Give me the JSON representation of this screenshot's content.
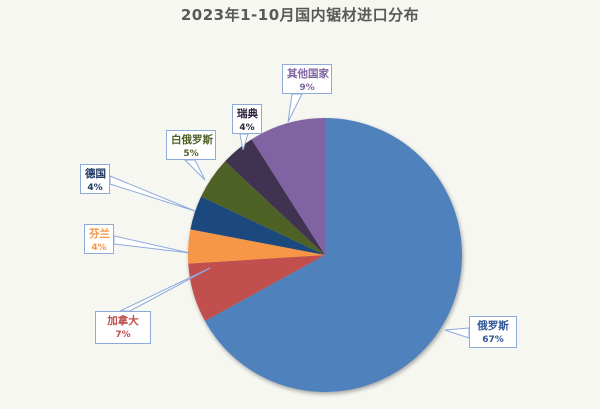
{
  "chart_data": {
    "type": "pie",
    "title": "2023年1-10月国内锯材进口分布",
    "categories": [
      "俄罗斯",
      "加拿大",
      "芬兰",
      "德国",
      "白俄罗斯",
      "瑞典",
      "其他国家"
    ],
    "values": [
      67,
      7,
      4,
      4,
      5,
      4,
      9
    ],
    "unit": "%",
    "labels": [
      "67%",
      "7%",
      "4%",
      "4%",
      "5%",
      "4%",
      "9%"
    ],
    "colors": [
      "#4f81bd",
      "#c0504d",
      "#f79646",
      "#1f497d",
      "#4f6228",
      "#403151",
      "#8064a2"
    ],
    "label_colors": [
      "#2f5597",
      "#c0504d",
      "#f79646",
      "#1f3864",
      "#4f6228",
      "#2e2440",
      "#8064a2"
    ],
    "start_angle": "12 o'clock",
    "direction": "clockwise",
    "legend": "none (callout data labels)"
  },
  "title": "2023年1-10月国内锯材进口分布",
  "labels": {
    "russia": {
      "name": "俄罗斯",
      "pct": "67%"
    },
    "canada": {
      "name": "加拿大",
      "pct": "7%"
    },
    "finland": {
      "name": "芬兰",
      "pct": "4%"
    },
    "germany": {
      "name": "德国",
      "pct": "4%"
    },
    "belarus": {
      "name": "白俄罗斯",
      "pct": "5%"
    },
    "sweden": {
      "name": "瑞典",
      "pct": "4%"
    },
    "others": {
      "name": "其他国家",
      "pct": "9%"
    }
  }
}
